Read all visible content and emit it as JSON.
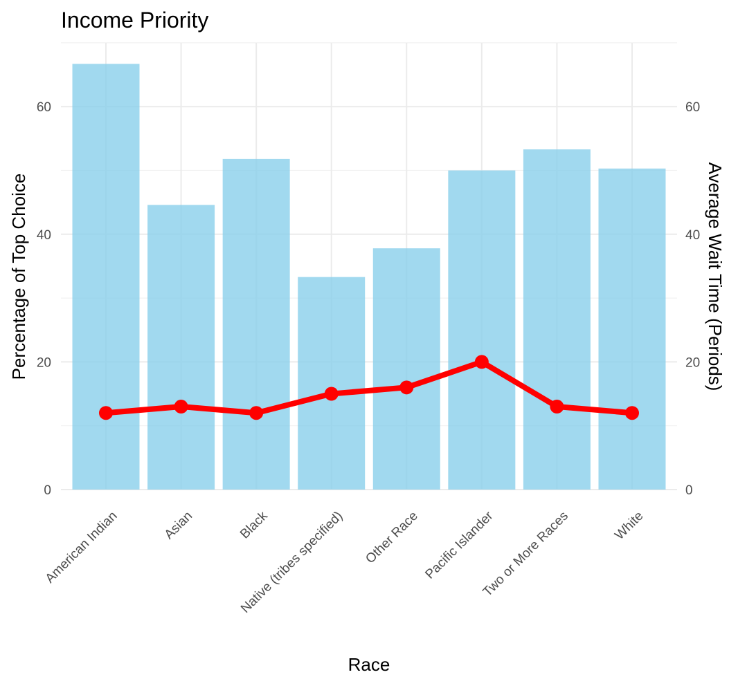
{
  "chart_data": {
    "type": "bar",
    "title": "Income Priority",
    "xlabel": "Race",
    "ylabel": "Percentage of Top Choice",
    "y2label": "Average Wait Time (Periods)",
    "categories": [
      "American Indian",
      "Asian",
      "Black",
      "Native (tribes specified)",
      "Other Race",
      "Pacific Islander",
      "Two or More Races",
      "White"
    ],
    "series": [
      {
        "type": "bar",
        "axis": "left",
        "color": "#87CEEB",
        "values": [
          66.7,
          44.6,
          51.8,
          33.3,
          37.8,
          50.0,
          53.3,
          50.3
        ]
      },
      {
        "type": "line",
        "axis": "right",
        "color": "#FF0000",
        "values": [
          12,
          13,
          12,
          15,
          16,
          20,
          13,
          12
        ]
      }
    ],
    "ylim": [
      0,
      70
    ],
    "y2lim": [
      0,
      70
    ],
    "yticks": [
      0,
      20,
      40,
      60
    ],
    "y2ticks": [
      0,
      20,
      40,
      60
    ],
    "grid": true,
    "legend": "none"
  }
}
